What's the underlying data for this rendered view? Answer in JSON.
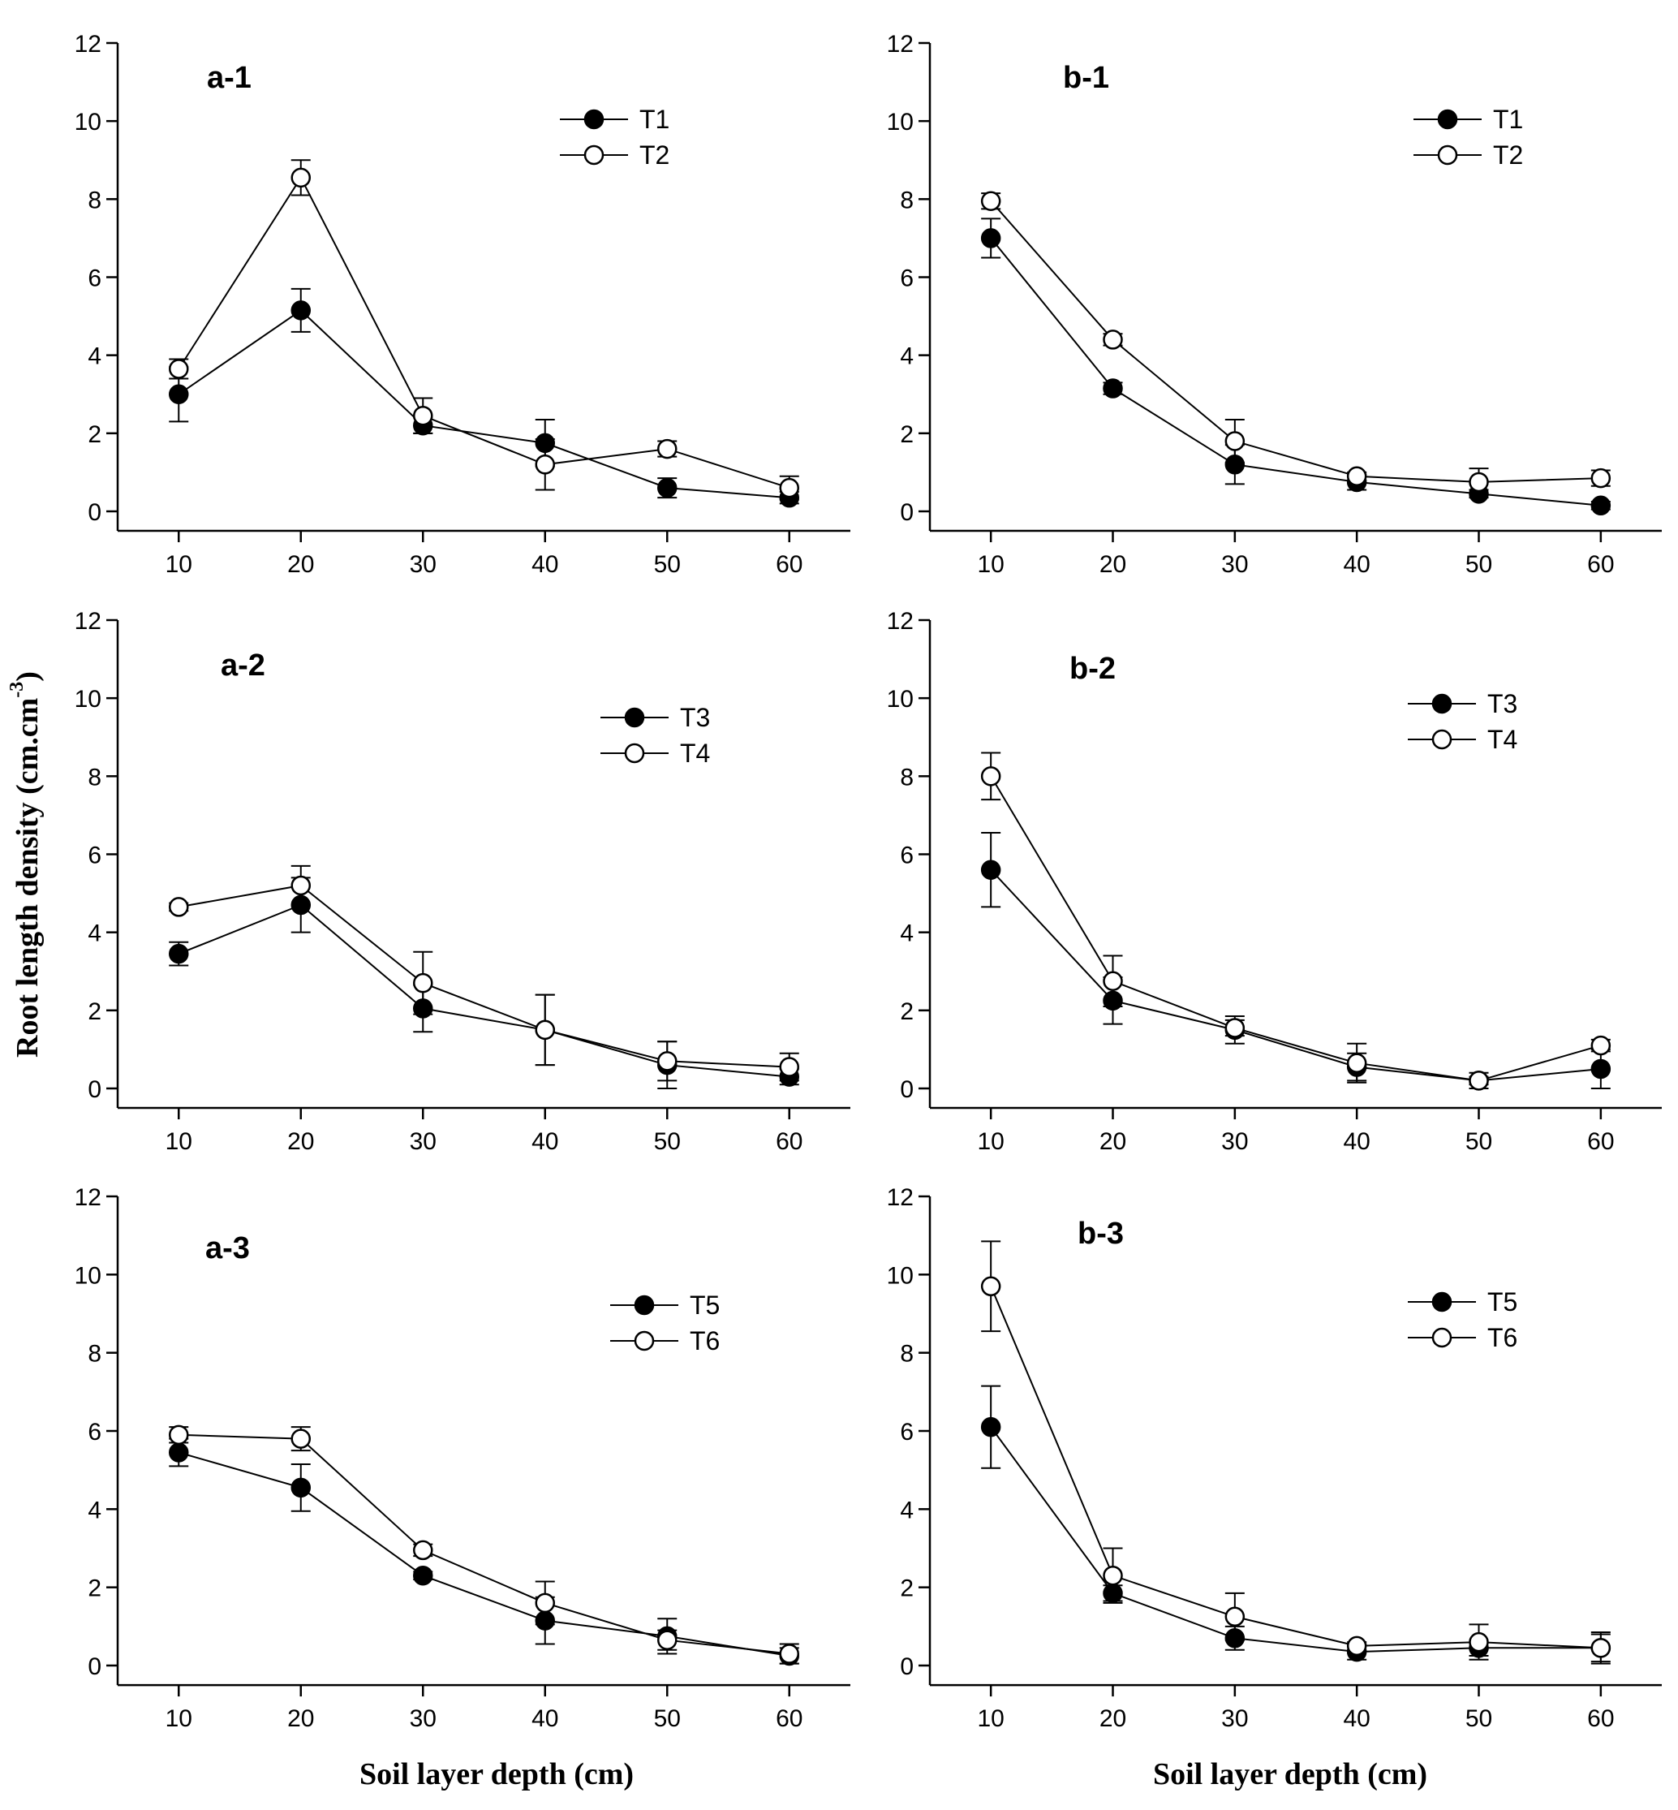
{
  "chart_data": {
    "type": "line",
    "ylabel": "Root length density (cm.cm",
    "ylabel_superscript": "-3",
    "ylabel_close": ")",
    "xlabel_left": "Soil  layer depth (cm)",
    "xlabel_right": "Soil layer depth (cm)",
    "x_ticks": [
      "10",
      "20",
      "30",
      "40",
      "50",
      "60"
    ],
    "y_ticks": [
      "0",
      "2",
      "4",
      "6",
      "8",
      "10",
      "12"
    ],
    "xlim": [
      5,
      65
    ],
    "ylim": [
      -0.5,
      12
    ],
    "panels": [
      {
        "id": "a-1",
        "label": "a-1",
        "series": [
          {
            "name": "T1",
            "marker": "filled",
            "x": [
              10,
              20,
              30,
              40,
              50,
              60
            ],
            "y": [
              3.0,
              5.15,
              2.2,
              1.75,
              0.6,
              0.35
            ],
            "err": [
              0.7,
              0.55,
              0.2,
              0.6,
              0.25,
              0.15
            ]
          },
          {
            "name": "T2",
            "marker": "open",
            "x": [
              10,
              20,
              30,
              40,
              50,
              60
            ],
            "y": [
              3.65,
              8.55,
              2.45,
              1.2,
              1.6,
              0.6
            ],
            "err": [
              0.25,
              0.45,
              0.45,
              0.65,
              0.2,
              0.3
            ]
          }
        ]
      },
      {
        "id": "b-1",
        "label": "b-1",
        "series": [
          {
            "name": "T1",
            "marker": "filled",
            "x": [
              10,
              20,
              30,
              40,
              50,
              60
            ],
            "y": [
              7.0,
              3.15,
              1.2,
              0.75,
              0.45,
              0.15
            ],
            "err": [
              0.5,
              0.15,
              0.5,
              0.2,
              0.1,
              0.1
            ]
          },
          {
            "name": "T2",
            "marker": "open",
            "x": [
              10,
              20,
              30,
              40,
              50,
              60
            ],
            "y": [
              7.95,
              4.4,
              1.8,
              0.9,
              0.75,
              0.85
            ],
            "err": [
              0.2,
              0.15,
              0.55,
              0.1,
              0.35,
              0.2
            ]
          }
        ]
      },
      {
        "id": "a-2",
        "label": "a-2",
        "series": [
          {
            "name": "T3",
            "marker": "filled",
            "x": [
              10,
              20,
              30,
              40,
              50,
              60
            ],
            "y": [
              3.45,
              4.7,
              2.05,
              1.5,
              0.6,
              0.3
            ],
            "err": [
              0.3,
              0.7,
              0.6,
              0.9,
              0.6,
              0.2
            ]
          },
          {
            "name": "T4",
            "marker": "open",
            "x": [
              10,
              20,
              30,
              40,
              50,
              60
            ],
            "y": [
              4.65,
              5.2,
              2.7,
              1.5,
              0.7,
              0.55
            ],
            "err": [
              0.1,
              0.5,
              0.8,
              0.9,
              0.5,
              0.35
            ]
          }
        ]
      },
      {
        "id": "b-2",
        "label": "b-2",
        "series": [
          {
            "name": "T3",
            "marker": "filled",
            "x": [
              10,
              20,
              30,
              40,
              50,
              60
            ],
            "y": [
              5.6,
              2.25,
              1.5,
              0.55,
              0.2,
              0.5
            ],
            "err": [
              0.95,
              0.6,
              0.35,
              0.35,
              0.2,
              0.5
            ]
          },
          {
            "name": "T4",
            "marker": "open",
            "x": [
              10,
              20,
              30,
              40,
              50,
              60
            ],
            "y": [
              8.0,
              2.75,
              1.55,
              0.65,
              0.2,
              1.1
            ],
            "err": [
              0.6,
              0.65,
              0.2,
              0.5,
              0.1,
              0.15
            ]
          }
        ]
      },
      {
        "id": "a-3",
        "label": "a-3",
        "series": [
          {
            "name": "T5",
            "marker": "filled",
            "x": [
              10,
              20,
              30,
              40,
              50,
              60
            ],
            "y": [
              5.45,
              4.55,
              2.3,
              1.15,
              0.75,
              0.25
            ],
            "err": [
              0.35,
              0.6,
              0.1,
              0.6,
              0.45,
              0.2
            ]
          },
          {
            "name": "T6",
            "marker": "open",
            "x": [
              10,
              20,
              30,
              40,
              50,
              60
            ],
            "y": [
              5.9,
              5.8,
              2.95,
              1.6,
              0.65,
              0.3
            ],
            "err": [
              0.2,
              0.3,
              0.15,
              0.55,
              0.25,
              0.25
            ]
          }
        ]
      },
      {
        "id": "b-3",
        "label": "b-3",
        "series": [
          {
            "name": "T5",
            "marker": "filled",
            "x": [
              10,
              20,
              30,
              40,
              50,
              60
            ],
            "y": [
              6.1,
              1.85,
              0.7,
              0.35,
              0.45,
              0.45
            ],
            "err": [
              1.05,
              0.2,
              0.3,
              0.2,
              0.2,
              0.35
            ]
          },
          {
            "name": "T6",
            "marker": "open",
            "x": [
              10,
              20,
              30,
              40,
              50,
              60
            ],
            "y": [
              9.7,
              2.3,
              1.25,
              0.5,
              0.6,
              0.45
            ],
            "err": [
              1.15,
              0.7,
              0.6,
              0.1,
              0.45,
              0.4
            ]
          }
        ]
      }
    ]
  }
}
